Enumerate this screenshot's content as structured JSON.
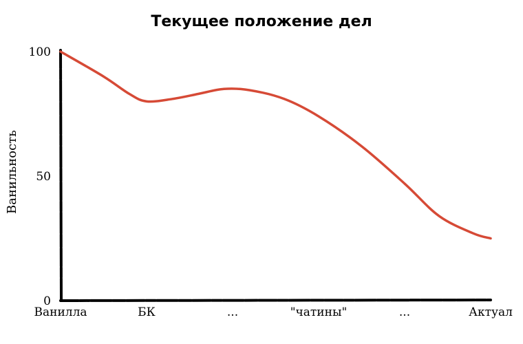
{
  "chart_data": {
    "type": "line",
    "title": "Текущее положение дел",
    "xlabel": "",
    "ylabel": "Ванильность",
    "categories": [
      "Ванилла",
      "БК",
      "...",
      "\"чатины\"",
      "...",
      "Актуал"
    ],
    "y_ticks": [
      "0",
      "50",
      "100"
    ],
    "y_tick_values": [
      0,
      50,
      100
    ],
    "ylim": [
      0,
      100
    ],
    "grid": false,
    "series": [
      {
        "color": "#d64a36",
        "x": [
          0,
          0.5,
          0.8,
          1.0,
          1.3,
          1.6,
          1.9,
          2.2,
          2.6,
          3.0,
          3.5,
          4.0,
          4.4,
          4.8,
          5.0
        ],
        "values": [
          100,
          90,
          83,
          80,
          81,
          83,
          85,
          84.5,
          81,
          74,
          62,
          47,
          34,
          27,
          25
        ]
      }
    ]
  }
}
